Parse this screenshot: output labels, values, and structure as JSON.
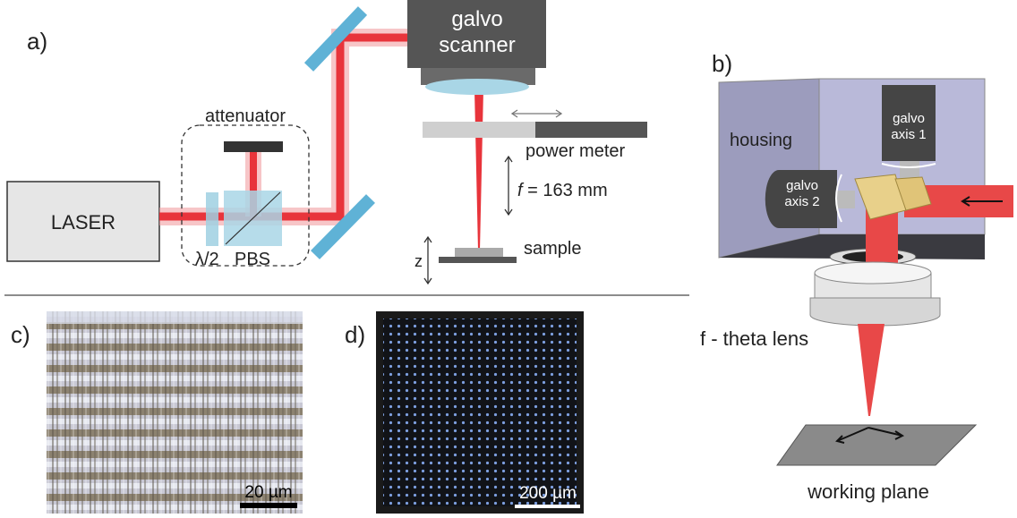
{
  "panel_a": {
    "label": "a)",
    "laser": "LASER",
    "attenuator": "attenuator",
    "half_wave_plate": "λ/2",
    "pbs": "PBS",
    "galvo_scanner": [
      "galvo",
      "scanner"
    ],
    "power_meter": "power meter",
    "focal_length": {
      "symbol": "f",
      "text": " = 163 mm"
    },
    "sample": "sample",
    "z_axis": "z"
  },
  "panel_b": {
    "label": "b)",
    "housing": "housing",
    "galvo_axis_1": [
      "galvo",
      "axis 1"
    ],
    "galvo_axis_2": [
      "galvo",
      "axis 2"
    ],
    "lens": "f - theta lens",
    "working_plane": "working plane"
  },
  "panel_c": {
    "label": "c)",
    "scale_bar": "20 µm"
  },
  "panel_d": {
    "label": "d)",
    "scale_bar": "200 µm"
  }
}
